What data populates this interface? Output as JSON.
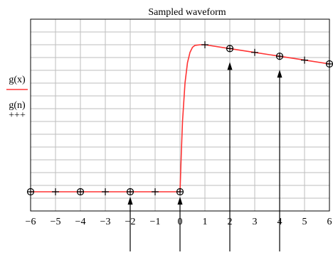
{
  "chart_data": {
    "type": "line",
    "title": "Sampled waveform",
    "xlim": [
      -6,
      6
    ],
    "ylim": [
      -0.15,
      1.35
    ],
    "x_ticks": [
      "−6",
      "−5",
      "−4",
      "−3",
      "−2",
      "−1",
      "0",
      "1",
      "2",
      "3",
      "4",
      "5",
      "6"
    ],
    "grid": true,
    "legend": [
      {
        "label": "g(x)",
        "style": "red line"
      },
      {
        "label": "g(n)",
        "style": "+++"
      }
    ],
    "series": [
      {
        "name": "g(x)",
        "style": "line",
        "color": "#ff3333",
        "x": [
          -6,
          -5,
          -4,
          -3,
          -2,
          -1,
          0,
          0.05,
          0.1,
          0.2,
          0.3,
          0.4,
          0.5,
          0.6,
          0.8,
          1,
          2,
          3,
          4,
          5,
          6
        ],
        "y": [
          0,
          0,
          0,
          0,
          0,
          0,
          0,
          0.3,
          0.55,
          0.85,
          1.01,
          1.09,
          1.13,
          1.145,
          1.15,
          1.15,
          1.12,
          1.09,
          1.06,
          1.03,
          1.0
        ]
      },
      {
        "name": "g(n)",
        "style": "plus markers",
        "color": "#000000",
        "x": [
          -6,
          -5,
          -4,
          -3,
          -2,
          -1,
          0,
          1,
          2,
          3,
          4,
          5,
          6
        ],
        "y": [
          0,
          0,
          0,
          0,
          0,
          0,
          0,
          1.15,
          1.12,
          1.09,
          1.06,
          1.03,
          1.0
        ]
      },
      {
        "name": "samples",
        "style": "circle markers",
        "color": "#000000",
        "x": [
          -6,
          -4,
          -2,
          0,
          2,
          4,
          6
        ],
        "y": [
          0,
          0,
          0,
          0,
          1.12,
          1.06,
          1.0
        ]
      }
    ],
    "sample_arrows_x": [
      -2,
      0,
      2,
      4
    ]
  }
}
